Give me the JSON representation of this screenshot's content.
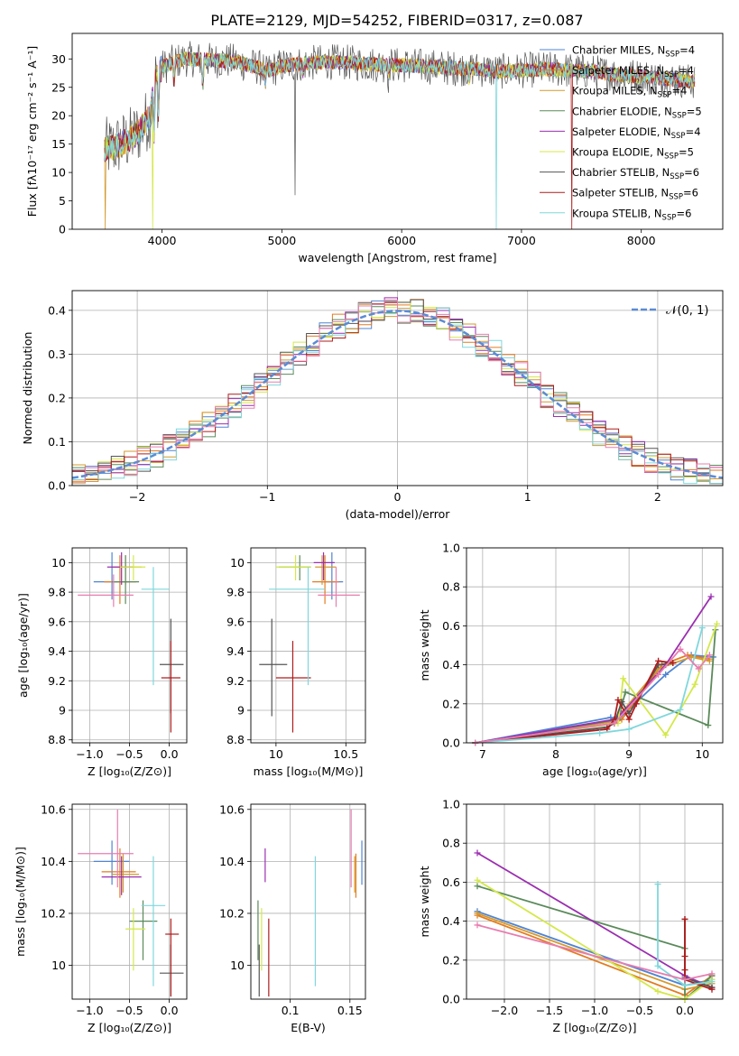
{
  "figure_title": "PLATE=2129, MJD=54252, FIBERID=0317, z=0.087",
  "colors": {
    "Chabrier MILES": "#4f84d3",
    "Salpeter MILES": "#e37b20",
    "Kroupa MILES": "#d49a2e",
    "Chabrier ELODIE": "#5a8a5a",
    "Salpeter ELODIE": "#9b2fb0",
    "Kroupa ELODIE": "#d4e84a",
    "Chabrier STELIB": "#555555",
    "Salpeter STELIB": "#b01c1c",
    "Kroupa STELIB": "#7fd7dc",
    "extra": "#e87db0",
    "normal_curve": "#5b8bd4",
    "grid": "#b0b0b0"
  },
  "chart_data": [
    {
      "id": "spectrum",
      "type": "line",
      "xlabel": "wavelength [Angstrom, rest frame]",
      "ylabel": "Flux [fλ10⁻¹⁷ erg cm⁻² s⁻¹ A⁻¹]",
      "xlim": [
        3250,
        8680
      ],
      "ylim": [
        0,
        34.5
      ],
      "xticks": [
        4000,
        5000,
        6000,
        7000,
        8000
      ],
      "yticks": [
        0,
        5,
        10,
        15,
        20,
        25,
        30
      ],
      "grid": false,
      "legend_position": "right",
      "continuum": {
        "x": [
          3520,
          3600,
          3700,
          3800,
          3900,
          3950,
          4000,
          4100,
          4200,
          4400,
          4600,
          4800,
          4900,
          5000,
          5200,
          5400,
          5600,
          5800,
          6000,
          6200,
          6400,
          6600,
          6800,
          7000,
          7200,
          7400,
          7600,
          7800,
          8000,
          8200,
          8450
        ],
        "y": [
          14,
          14.5,
          15.5,
          17,
          20,
          27,
          28.5,
          29.5,
          30,
          29.8,
          29.6,
          28.5,
          28,
          28.8,
          29.2,
          29.5,
          29.3,
          29.0,
          28.9,
          28.7,
          28.4,
          28.3,
          27.8,
          28.0,
          28.2,
          28.0,
          27.7,
          27.2,
          26.9,
          26.5,
          26.0
        ]
      },
      "series": [
        {
          "name": "Chabrier MILES, N_SSP=4",
          "label_main": "Chabrier MILES, N",
          "label_sub": "SSP",
          "label_end": "=4"
        },
        {
          "name": "Salpeter MILES, N_SSP=4",
          "label_main": "Salpeter MILES, N",
          "label_sub": "SSP",
          "label_end": "=4"
        },
        {
          "name": "Kroupa MILES, N_SSP=4",
          "label_main": "Kroupa MILES, N",
          "label_sub": "SSP",
          "label_end": "=4"
        },
        {
          "name": "Chabrier ELODIE, N_SSP=5",
          "label_main": "Chabrier ELODIE, N",
          "label_sub": "SSP",
          "label_end": "=5"
        },
        {
          "name": "Salpeter ELODIE, N_SSP=4",
          "label_main": "Salpeter ELODIE, N",
          "label_sub": "SSP",
          "label_end": "=4"
        },
        {
          "name": "Kroupa ELODIE, N_SSP=5",
          "label_main": "Kroupa ELODIE, N",
          "label_sub": "SSP",
          "label_end": "=5"
        },
        {
          "name": "Chabrier STELIB, N_SSP=6",
          "label_main": "Chabrier STELIB, N",
          "label_sub": "SSP",
          "label_end": "=6"
        },
        {
          "name": "Salpeter STELIB, N_SSP=6",
          "label_main": "Salpeter STELIB, N",
          "label_sub": "SSP",
          "label_end": "=6"
        },
        {
          "name": "Kroupa STELIB, N_SSP=6",
          "label_main": "Kroupa STELIB, N",
          "label_sub": "SSP",
          "label_end": "=6"
        }
      ]
    },
    {
      "id": "residuals",
      "type": "line",
      "xlabel": "(data-model)/error",
      "ylabel": "Normed distribution",
      "xlim": [
        -2.5,
        2.5
      ],
      "ylim": [
        0,
        0.445
      ],
      "xticks": [
        -2,
        -1,
        0,
        1,
        2
      ],
      "yticks": [
        0.0,
        0.1,
        0.2,
        0.3,
        0.4
      ],
      "grid": true,
      "legend_position": "top-right",
      "legend_label": "𝒩(0, 1)",
      "step_histograms": 10,
      "bin_width": 0.1
    },
    {
      "id": "age_vs_Z",
      "type": "scatter",
      "xlabel": "Z [log₁₀(Z/Z⊙)]",
      "ylabel": "age  [log₁₀(age/yr)]",
      "xlim": [
        -1.22,
        0.22
      ],
      "ylim": [
        8.78,
        10.1
      ],
      "xticks": [
        -1.0,
        -0.5,
        0.0
      ],
      "yticks": [
        8.8,
        9.0,
        9.2,
        9.4,
        9.6,
        9.8,
        10.0
      ],
      "grid": true,
      "points": [
        {
          "x": -0.72,
          "y": 9.87,
          "xlo": -0.95,
          "xhi": -0.5,
          "ylo": 9.75,
          "yhi": 10.07,
          "c": "Chabrier MILES"
        },
        {
          "x": -0.62,
          "y": 9.87,
          "xlo": -0.82,
          "xhi": -0.42,
          "ylo": 9.72,
          "yhi": 10.05,
          "c": "Salpeter MILES"
        },
        {
          "x": -0.55,
          "y": 9.97,
          "xlo": -0.72,
          "xhi": -0.35,
          "ylo": 9.85,
          "yhi": 10.05,
          "c": "Kroupa MILES"
        },
        {
          "x": -0.55,
          "y": 9.87,
          "xlo": -0.72,
          "xhi": -0.38,
          "ylo": 9.72,
          "yhi": 10.05,
          "c": "Chabrier ELODIE"
        },
        {
          "x": -0.6,
          "y": 9.97,
          "xlo": -0.78,
          "xhi": -0.45,
          "ylo": 9.85,
          "yhi": 10.07,
          "c": "Salpeter ELODIE"
        },
        {
          "x": -0.45,
          "y": 9.97,
          "xlo": -0.62,
          "xhi": -0.3,
          "ylo": 9.88,
          "yhi": 10.05,
          "c": "Kroupa ELODIE"
        },
        {
          "x": 0.02,
          "y": 9.31,
          "xlo": -0.12,
          "xhi": 0.18,
          "ylo": 8.98,
          "yhi": 9.62,
          "c": "Chabrier STELIB"
        },
        {
          "x": 0.02,
          "y": 9.22,
          "xlo": -0.1,
          "xhi": 0.14,
          "ylo": 8.85,
          "yhi": 9.47,
          "c": "Salpeter STELIB"
        },
        {
          "x": -0.2,
          "y": 9.82,
          "xlo": -0.35,
          "xhi": 0.0,
          "ylo": 9.17,
          "yhi": 9.97,
          "c": "Kroupa STELIB"
        },
        {
          "x": -0.7,
          "y": 9.78,
          "xlo": -1.15,
          "xhi": -0.45,
          "ylo": 9.7,
          "yhi": 9.92,
          "c": "extra"
        }
      ]
    },
    {
      "id": "age_vs_mass",
      "type": "scatter",
      "xlabel": "mass [log₁₀(M/M⊙)]",
      "ylabel": "",
      "xlim": [
        9.82,
        10.64
      ],
      "ylim": [
        8.78,
        10.1
      ],
      "xticks": [
        10.0,
        10.5
      ],
      "yticks": [
        8.8,
        9.0,
        9.2,
        9.4,
        9.6,
        9.8,
        10.0
      ],
      "grid": true,
      "points": [
        {
          "x": 10.4,
          "y": 9.87,
          "xlo": 10.32,
          "xhi": 10.48,
          "ylo": 9.75,
          "yhi": 10.07,
          "c": "Chabrier MILES"
        },
        {
          "x": 10.35,
          "y": 9.87,
          "xlo": 10.26,
          "xhi": 10.45,
          "ylo": 9.72,
          "yhi": 10.05,
          "c": "Salpeter MILES"
        },
        {
          "x": 10.33,
          "y": 9.97,
          "xlo": 10.28,
          "xhi": 10.43,
          "ylo": 9.85,
          "yhi": 10.05,
          "c": "Kroupa MILES"
        },
        {
          "x": 10.17,
          "y": 9.97,
          "xlo": 10.02,
          "xhi": 10.25,
          "ylo": 9.88,
          "yhi": 10.05,
          "c": "Chabrier ELODIE"
        },
        {
          "x": 10.34,
          "y": 10.0,
          "xlo": 10.27,
          "xhi": 10.42,
          "ylo": 9.88,
          "yhi": 10.07,
          "c": "Salpeter ELODIE"
        },
        {
          "x": 10.14,
          "y": 9.97,
          "xlo": 10.0,
          "xhi": 10.25,
          "ylo": 9.88,
          "yhi": 10.05,
          "c": "Kroupa ELODIE"
        },
        {
          "x": 9.97,
          "y": 9.31,
          "xlo": 9.88,
          "xhi": 10.08,
          "ylo": 8.96,
          "yhi": 9.62,
          "c": "Chabrier STELIB"
        },
        {
          "x": 10.12,
          "y": 9.22,
          "xlo": 10.0,
          "xhi": 10.25,
          "ylo": 8.85,
          "yhi": 9.47,
          "c": "Salpeter STELIB"
        },
        {
          "x": 10.23,
          "y": 9.82,
          "xlo": 9.95,
          "xhi": 10.35,
          "ylo": 9.17,
          "yhi": 9.97,
          "c": "Kroupa STELIB"
        },
        {
          "x": 10.43,
          "y": 9.78,
          "xlo": 10.3,
          "xhi": 10.6,
          "ylo": 9.7,
          "yhi": 9.97,
          "c": "extra"
        }
      ]
    },
    {
      "id": "weight_vs_age",
      "type": "line",
      "xlabel": "age  [log₁₀(age/yr)]",
      "ylabel": "mass weight",
      "xlim": [
        6.78,
        10.28
      ],
      "ylim": [
        0,
        1.0
      ],
      "xticks": [
        7,
        8,
        9,
        10
      ],
      "yticks": [
        0.0,
        0.2,
        0.4,
        0.6,
        0.8,
        1.0
      ],
      "grid": true,
      "series": [
        {
          "c": "Chabrier MILES",
          "x": [
            6.9,
            8.75,
            8.85,
            9.5,
            9.85,
            10.15
          ],
          "y": [
            0.0,
            0.13,
            0.12,
            0.35,
            0.45,
            0.44
          ]
        },
        {
          "c": "Salpeter MILES",
          "x": [
            6.9,
            8.8,
            8.9,
            9.45,
            9.8,
            10.1
          ],
          "y": [
            0.0,
            0.1,
            0.12,
            0.4,
            0.45,
            0.43
          ]
        },
        {
          "c": "Kroupa MILES",
          "x": [
            6.9,
            8.8,
            9.4,
            9.85,
            10.1
          ],
          "y": [
            0.0,
            0.11,
            0.38,
            0.44,
            0.42
          ]
        },
        {
          "c": "Chabrier ELODIE",
          "x": [
            6.9,
            8.85,
            8.95,
            10.08,
            10.18
          ],
          "y": [
            0.0,
            0.12,
            0.26,
            0.09,
            0.58
          ]
        },
        {
          "c": "Salpeter ELODIE",
          "x": [
            6.9,
            8.8,
            8.9,
            9.5,
            10.12
          ],
          "y": [
            0.0,
            0.12,
            0.15,
            0.4,
            0.75
          ]
        },
        {
          "c": "Kroupa ELODIE",
          "x": [
            6.9,
            8.85,
            8.92,
            9.5,
            9.9,
            10.2
          ],
          "y": [
            0.0,
            0.1,
            0.33,
            0.04,
            0.3,
            0.61
          ]
        },
        {
          "c": "Chabrier STELIB",
          "x": [
            6.9,
            8.7,
            8.8,
            8.9,
            9.0,
            9.4,
            9.6
          ],
          "y": [
            0.0,
            0.08,
            0.1,
            0.21,
            0.15,
            0.4,
            0.41
          ]
        },
        {
          "c": "Salpeter STELIB",
          "x": [
            6.9,
            8.7,
            8.8,
            8.85,
            9.0,
            9.1,
            9.4,
            9.6
          ],
          "y": [
            0.0,
            0.07,
            0.12,
            0.22,
            0.12,
            0.2,
            0.42,
            0.41
          ]
        },
        {
          "c": "Kroupa STELIB",
          "x": [
            6.9,
            8.6,
            9.0,
            9.7,
            10.0
          ],
          "y": [
            0.0,
            0.05,
            0.07,
            0.17,
            0.59
          ]
        },
        {
          "c": "extra",
          "x": [
            6.9,
            8.8,
            9.4,
            9.7,
            9.95,
            10.1
          ],
          "y": [
            0.0,
            0.1,
            0.35,
            0.48,
            0.38,
            0.45
          ]
        }
      ]
    },
    {
      "id": "mass_vs_Z",
      "type": "scatter",
      "xlabel": "Z [log₁₀(Z/Z⊙)]",
      "ylabel": "mass [log₁₀(M/M⊙)]",
      "xlim": [
        -1.22,
        0.22
      ],
      "ylim": [
        9.87,
        10.62
      ],
      "xticks": [
        -1.0,
        -0.5,
        0.0
      ],
      "yticks": [
        10.0,
        10.2,
        10.4,
        10.6
      ],
      "grid": true,
      "points": [
        {
          "x": -0.72,
          "y": 10.4,
          "xlo": -0.95,
          "xhi": -0.5,
          "ylo": 10.31,
          "yhi": 10.48,
          "c": "Chabrier MILES"
        },
        {
          "x": -0.62,
          "y": 10.36,
          "xlo": -0.85,
          "xhi": -0.42,
          "ylo": 10.26,
          "yhi": 10.45,
          "c": "Salpeter MILES"
        },
        {
          "x": -0.58,
          "y": 10.35,
          "xlo": -0.72,
          "xhi": -0.38,
          "ylo": 10.28,
          "yhi": 10.43,
          "c": "Kroupa MILES"
        },
        {
          "x": -0.33,
          "y": 10.17,
          "xlo": -0.5,
          "xhi": -0.15,
          "ylo": 10.02,
          "yhi": 10.25,
          "c": "Chabrier ELODIE"
        },
        {
          "x": -0.6,
          "y": 10.34,
          "xlo": -0.85,
          "xhi": -0.35,
          "ylo": 10.27,
          "yhi": 10.42,
          "c": "Salpeter ELODIE"
        },
        {
          "x": -0.45,
          "y": 10.14,
          "xlo": -0.55,
          "xhi": -0.3,
          "ylo": 9.98,
          "yhi": 10.22,
          "c": "Kroupa ELODIE"
        },
        {
          "x": 0.02,
          "y": 9.97,
          "xlo": -0.12,
          "xhi": 0.18,
          "ylo": 9.88,
          "yhi": 10.08,
          "c": "Chabrier STELIB"
        },
        {
          "x": 0.02,
          "y": 10.12,
          "xlo": -0.05,
          "xhi": 0.12,
          "ylo": 9.88,
          "yhi": 10.18,
          "c": "Salpeter STELIB"
        },
        {
          "x": -0.2,
          "y": 10.23,
          "xlo": -0.35,
          "xhi": -0.05,
          "ylo": 9.92,
          "yhi": 10.42,
          "c": "Kroupa STELIB"
        },
        {
          "x": -0.65,
          "y": 10.43,
          "xlo": -1.15,
          "xhi": -0.45,
          "ylo": 10.3,
          "yhi": 10.6,
          "c": "extra"
        }
      ]
    },
    {
      "id": "mass_vs_EBV",
      "type": "scatter",
      "xlabel": "E(B-V)",
      "ylabel": "",
      "xlim": [
        0.067,
        0.163
      ],
      "ylim": [
        9.87,
        10.62
      ],
      "xticks": [
        0.1,
        0.15
      ],
      "yticks": [
        10.0,
        10.2,
        10.4,
        10.6
      ],
      "grid": true,
      "points": [
        {
          "x": 0.16,
          "ylo": 10.31,
          "yhi": 10.48,
          "c": "Chabrier MILES"
        },
        {
          "x": 0.155,
          "ylo": 10.26,
          "yhi": 10.43,
          "c": "Salpeter MILES"
        },
        {
          "x": 0.154,
          "ylo": 10.28,
          "yhi": 10.42,
          "c": "Kroupa MILES"
        },
        {
          "x": 0.073,
          "ylo": 10.02,
          "yhi": 10.25,
          "c": "Chabrier ELODIE"
        },
        {
          "x": 0.079,
          "ylo": 10.32,
          "yhi": 10.45,
          "c": "Salpeter ELODIE"
        },
        {
          "x": 0.076,
          "ylo": 9.98,
          "yhi": 10.22,
          "c": "Kroupa ELODIE"
        },
        {
          "x": 0.074,
          "ylo": 9.88,
          "yhi": 10.08,
          "c": "Chabrier STELIB"
        },
        {
          "x": 0.082,
          "ylo": 9.88,
          "yhi": 10.18,
          "c": "Salpeter STELIB"
        },
        {
          "x": 0.121,
          "ylo": 9.92,
          "yhi": 10.42,
          "c": "Kroupa STELIB"
        },
        {
          "x": 0.151,
          "ylo": 10.3,
          "yhi": 10.6,
          "c": "extra"
        }
      ]
    },
    {
      "id": "weight_vs_Z",
      "type": "line",
      "xlabel": "Z [log₁₀(Z/Z⊙)]",
      "ylabel": "mass weight",
      "xlim": [
        -2.42,
        0.42
      ],
      "ylim": [
        0,
        1.0
      ],
      "xticks": [
        -2.0,
        -1.5,
        -1.0,
        -0.5,
        0.0
      ],
      "yticks": [
        0.0,
        0.2,
        0.4,
        0.6,
        0.8,
        1.0
      ],
      "grid": true,
      "series": [
        {
          "c": "Chabrier MILES",
          "x": [
            -2.3,
            0.0,
            0.3
          ],
          "y": [
            0.45,
            0.07,
            0.1
          ]
        },
        {
          "c": "Salpeter MILES",
          "x": [
            -2.3,
            0.0,
            0.3
          ],
          "y": [
            0.43,
            0.02,
            0.12
          ]
        },
        {
          "c": "Kroupa MILES",
          "x": [
            -2.3,
            0.0,
            0.3
          ],
          "y": [
            0.44,
            0.05,
            0.08
          ]
        },
        {
          "c": "Chabrier ELODIE",
          "x": [
            -2.3,
            0.0,
            0.0,
            0.3
          ],
          "y": [
            0.58,
            0.26,
            0.0,
            0.12
          ]
        },
        {
          "c": "Salpeter ELODIE",
          "x": [
            -2.3,
            0.0,
            0.3
          ],
          "y": [
            0.75,
            0.12,
            0.06
          ]
        },
        {
          "c": "Kroupa ELODIE",
          "x": [
            -2.3,
            -0.3,
            0.0,
            0.3
          ],
          "y": [
            0.61,
            0.04,
            0.0,
            0.1
          ]
        },
        {
          "c": "Chabrier STELIB",
          "x": [
            0.0,
            0.0,
            0.3
          ],
          "y": [
            0.41,
            0.11,
            0.06
          ]
        },
        {
          "c": "Salpeter STELIB",
          "x": [
            0.0,
            0.0,
            0.0,
            0.0,
            0.3
          ],
          "y": [
            0.41,
            0.22,
            0.15,
            0.1,
            0.05
          ]
        },
        {
          "c": "Kroupa STELIB",
          "x": [
            -0.3,
            -0.3,
            0.0,
            0.3
          ],
          "y": [
            0.59,
            0.17,
            0.07,
            0.09
          ]
        },
        {
          "c": "extra",
          "x": [
            -2.3,
            0.0,
            0.3
          ],
          "y": [
            0.38,
            0.1,
            0.13
          ]
        }
      ]
    }
  ]
}
